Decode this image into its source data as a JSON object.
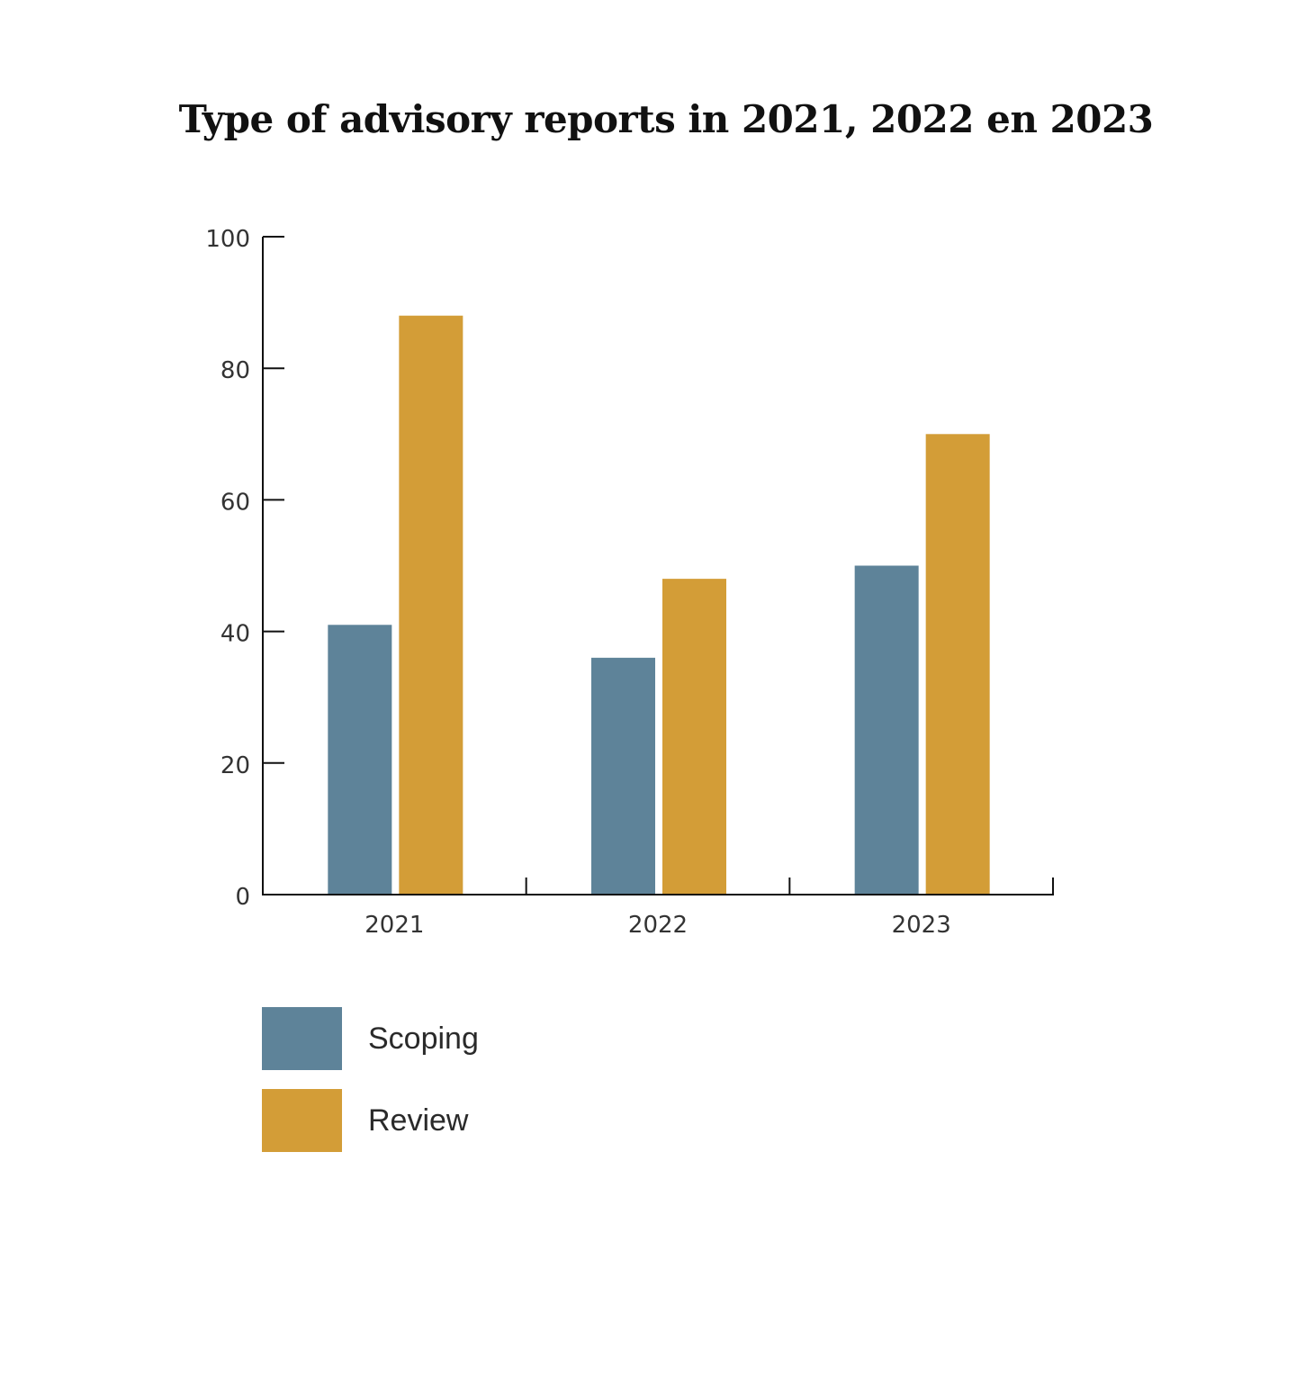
{
  "chart_data": {
    "type": "bar",
    "title": "Type of advisory reports in 2021, 2022 en 2023",
    "categories": [
      "2021",
      "2022",
      "2023"
    ],
    "series": [
      {
        "name": "Scoping",
        "color": "#5e8399",
        "values": [
          41,
          36,
          50
        ]
      },
      {
        "name": "Review",
        "color": "#d39d37",
        "values": [
          88,
          48,
          70
        ]
      }
    ],
    "ylim": [
      0,
      100
    ],
    "yticks": [
      "0",
      "20",
      "40",
      "60",
      "80",
      "100"
    ],
    "xlabel": "",
    "ylabel": "",
    "grid": false,
    "legend_position": "bottom-left"
  }
}
